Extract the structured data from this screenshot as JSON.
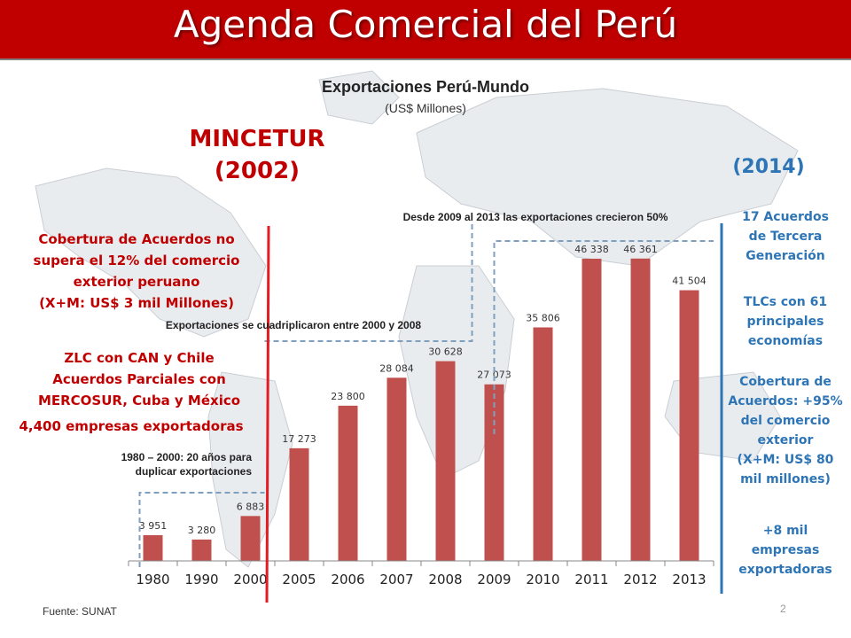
{
  "header": {
    "title": "Agenda Comercial del Perú"
  },
  "left_panel": {
    "milestone_title": "MINCETUR",
    "milestone_year": "(2002)",
    "coverage_lines": [
      "Cobertura de Acuerdos no",
      "supera el 12% del comercio",
      "exterior peruano",
      "(X+M: US$ 3 mil Millones)"
    ],
    "agreements_lines": [
      "ZLC con CAN y Chile",
      "Acuerdos Parciales con",
      "MERCOSUR, Cuba y México"
    ],
    "companies": "4,400 empresas exportadoras",
    "note_lines": [
      "1980 – 2000: 20 años para",
      "duplicar exportaciones"
    ]
  },
  "right_panel": {
    "year": "(2014)",
    "agreements_lines": [
      "17 Acuerdos",
      "de Tercera",
      "Generación"
    ],
    "tlc_lines": [
      "TLCs con 61",
      "principales",
      "economías"
    ],
    "coverage_lines": [
      "Cobertura de",
      "Acuerdos: +95%",
      "del comercio",
      "exterior",
      "(X+M: US$ 80",
      "mil millones)"
    ],
    "companies_lines": [
      "+8 mil",
      "empresas",
      "exportadoras"
    ]
  },
  "annotations": {
    "growth_2009_2013": "Desde 2009 al 2013 las exportaciones crecieron 50%",
    "quadrupled_2000_2008": "Exportaciones se cuadriplicaron entre 2000 y 2008"
  },
  "footer": {
    "source": "Fuente: SUNAT",
    "page_number": "2"
  },
  "colors": {
    "header_bg": "#c00000",
    "bar": "#c0504d",
    "red_text": "#c00000",
    "blue_text": "#2e75b6",
    "red_line": "#e31b23",
    "blue_line": "#2e75b6",
    "dashed": "#7f9fbf"
  },
  "chart_data": {
    "type": "bar",
    "title": "Exportaciones Perú-Mundo",
    "subtitle": "(US$ Millones)",
    "categories": [
      "1980",
      "1990",
      "2000",
      "2005",
      "2006",
      "2007",
      "2008",
      "2009",
      "2010",
      "2011",
      "2012",
      "2013"
    ],
    "values": [
      3951,
      3280,
      6883,
      17273,
      23800,
      28084,
      30628,
      27073,
      35806,
      46338,
      46361,
      41504
    ],
    "value_labels": [
      "3 951",
      "3 280",
      "6 883",
      "17 273",
      "23 800",
      "28 084",
      "30 628",
      "27 073",
      "35 806",
      "46 338",
      "46 361",
      "41 504"
    ],
    "ylim": [
      0,
      50000
    ],
    "grid": false,
    "legend": "none"
  }
}
